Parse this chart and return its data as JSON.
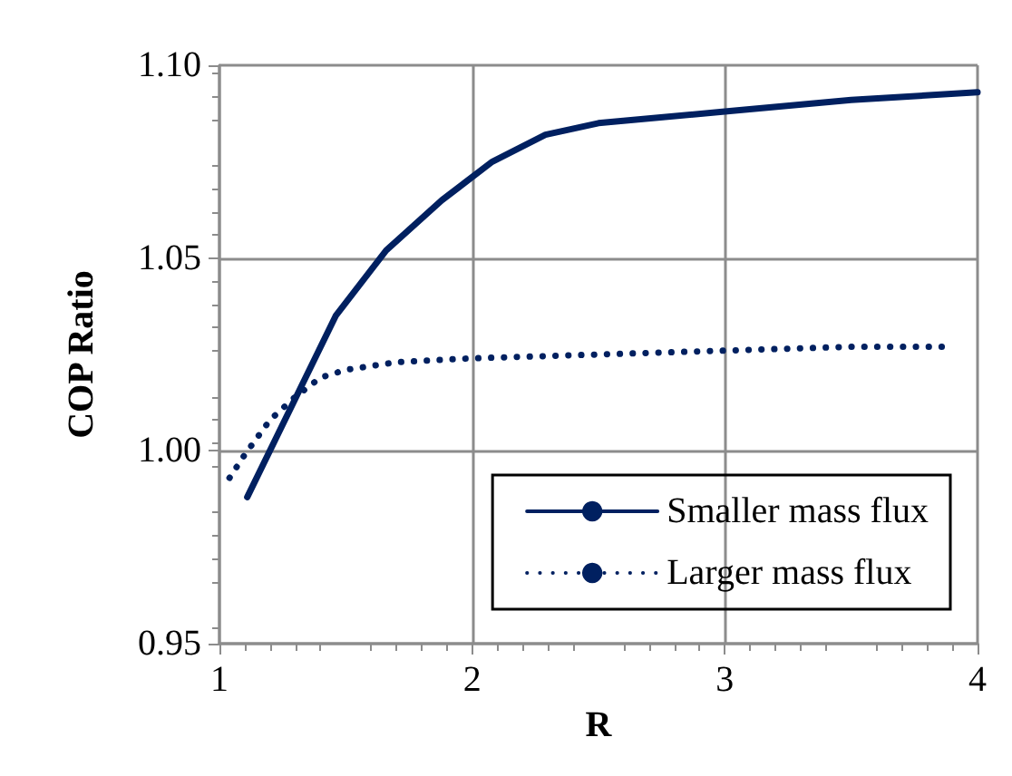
{
  "chart_data": {
    "type": "line",
    "xlabel": "R",
    "ylabel": "COP Ratio",
    "xlim": [
      1,
      4
    ],
    "xticks": [
      1,
      2,
      3,
      4
    ],
    "ylim": [
      0.95,
      1.1
    ],
    "yticks": [
      {
        "value": 0.95,
        "label": "0.95"
      },
      {
        "value": 1.0,
        "label": "1.00"
      },
      {
        "value": 1.05,
        "label": "1.05"
      },
      {
        "value": 1.1,
        "label": "1.10"
      }
    ],
    "grid": true,
    "legend": "bottom right",
    "series": [
      {
        "name": "Smaller mass flux",
        "color": "#002060",
        "line_style": "solid",
        "x": [
          1.11,
          1.46,
          1.66,
          1.88,
          2.08,
          2.29,
          2.5,
          3.0,
          3.5,
          4.0
        ],
        "values": [
          0.988,
          1.035,
          1.052,
          1.065,
          1.075,
          1.082,
          1.085,
          1.088,
          1.091,
          1.093
        ]
      },
      {
        "name": "Larger mass flux",
        "color": "#002060",
        "line_style": "dotted",
        "x": [
          1.04,
          1.1,
          1.2,
          1.3,
          1.4,
          1.5,
          1.7,
          2.0,
          2.5,
          3.0,
          3.5,
          3.88
        ],
        "values": [
          0.993,
          0.999,
          1.008,
          1.014,
          1.019,
          1.021,
          1.023,
          1.024,
          1.025,
          1.026,
          1.027,
          1.027
        ]
      }
    ]
  }
}
